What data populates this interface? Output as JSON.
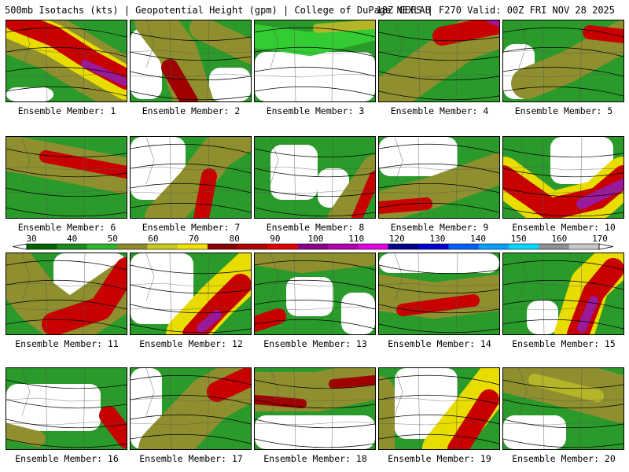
{
  "header": {
    "title_left": "500mb Isotachs (kts) | Geopotential Height (gpm) | College of DuPage NEXLAB",
    "title_right": "18Z GEFS | F270 Valid: 00Z FRI NOV 28 2025"
  },
  "colorbar": {
    "ticks": [
      "30",
      "40",
      "50",
      "60",
      "70",
      "80",
      "90",
      "100",
      "110",
      "120",
      "130",
      "140",
      "150",
      "160",
      "170"
    ],
    "colors": [
      "#006400",
      "#1a8a1a",
      "#2fb52f",
      "#8b8b2a",
      "#c8c81e",
      "#f0e000",
      "#8b0000",
      "#b00000",
      "#e00000",
      "#8b008b",
      "#b000b0",
      "#e000e0",
      "#00008b",
      "#0000d0",
      "#0060ff",
      "#00a0ff",
      "#00d8ff",
      "#909090",
      "#c8c8c8"
    ]
  },
  "speed_colors": {
    "s30": "#007000",
    "s40": "#2a9a2a",
    "s50": "#33cc33",
    "s60": "#8f8f2f",
    "s65": "#b5b52a",
    "s70": "#e8dc00",
    "s80": "#a00000",
    "s90": "#c80000",
    "s100": "#e01010",
    "s110": "#9a189a",
    "s120": "#c020c0"
  },
  "panels": [
    {
      "label": "Ensemble Member: 1"
    },
    {
      "label": "Ensemble Member: 2"
    },
    {
      "label": "Ensemble Member: 3"
    },
    {
      "label": "Ensemble Member: 4"
    },
    {
      "label": "Ensemble Member: 5"
    },
    {
      "label": "Ensemble Member: 6"
    },
    {
      "label": "Ensemble Member: 7"
    },
    {
      "label": "Ensemble Member: 8"
    },
    {
      "label": "Ensemble Member: 9"
    },
    {
      "label": "Ensemble Member: 10"
    },
    {
      "label": "Ensemble Member: 11"
    },
    {
      "label": "Ensemble Member: 12"
    },
    {
      "label": "Ensemble Member: 13"
    },
    {
      "label": "Ensemble Member: 14"
    },
    {
      "label": "Ensemble Member: 15"
    },
    {
      "label": "Ensemble Member: 16"
    },
    {
      "label": "Ensemble Member: 17"
    },
    {
      "label": "Ensemble Member: 18"
    },
    {
      "label": "Ensemble Member: 19"
    },
    {
      "label": "Ensemble Member: 20"
    }
  ]
}
